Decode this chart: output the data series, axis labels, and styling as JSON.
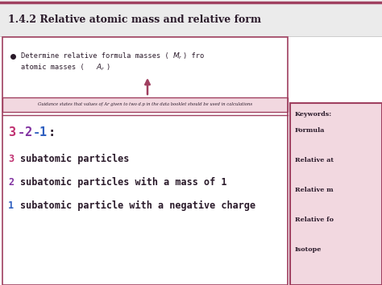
{
  "title": "1.4.2 Relative atomic mass and relative form",
  "bg_color": "#f0f0f0",
  "title_bg": "#f0f0f0",
  "title_color": "#2a1a2a",
  "pink": "#a04060",
  "light_pink_bg": "#f2d8e0",
  "num3_color": "#c03070",
  "num2_color": "#8030a0",
  "num1_color": "#3060c0",
  "guidance_text": "Guidance states that values of Ar given to two d.p in the data booklet should be used in calculations",
  "item3": "subatomic particles",
  "item2": "subatomic particles with a mass of 1",
  "item1": "subatomic particle with a negative charge",
  "keywords_title": "Keywords:",
  "keywords": [
    "Formula",
    "Relative at",
    "Relative m",
    "Relative fo",
    "Isotope"
  ],
  "section_border_color": "#a04060",
  "colon_color": "#2a1a2a",
  "text_color": "#2a1a2a",
  "bullet_color": "#2a1a2a"
}
